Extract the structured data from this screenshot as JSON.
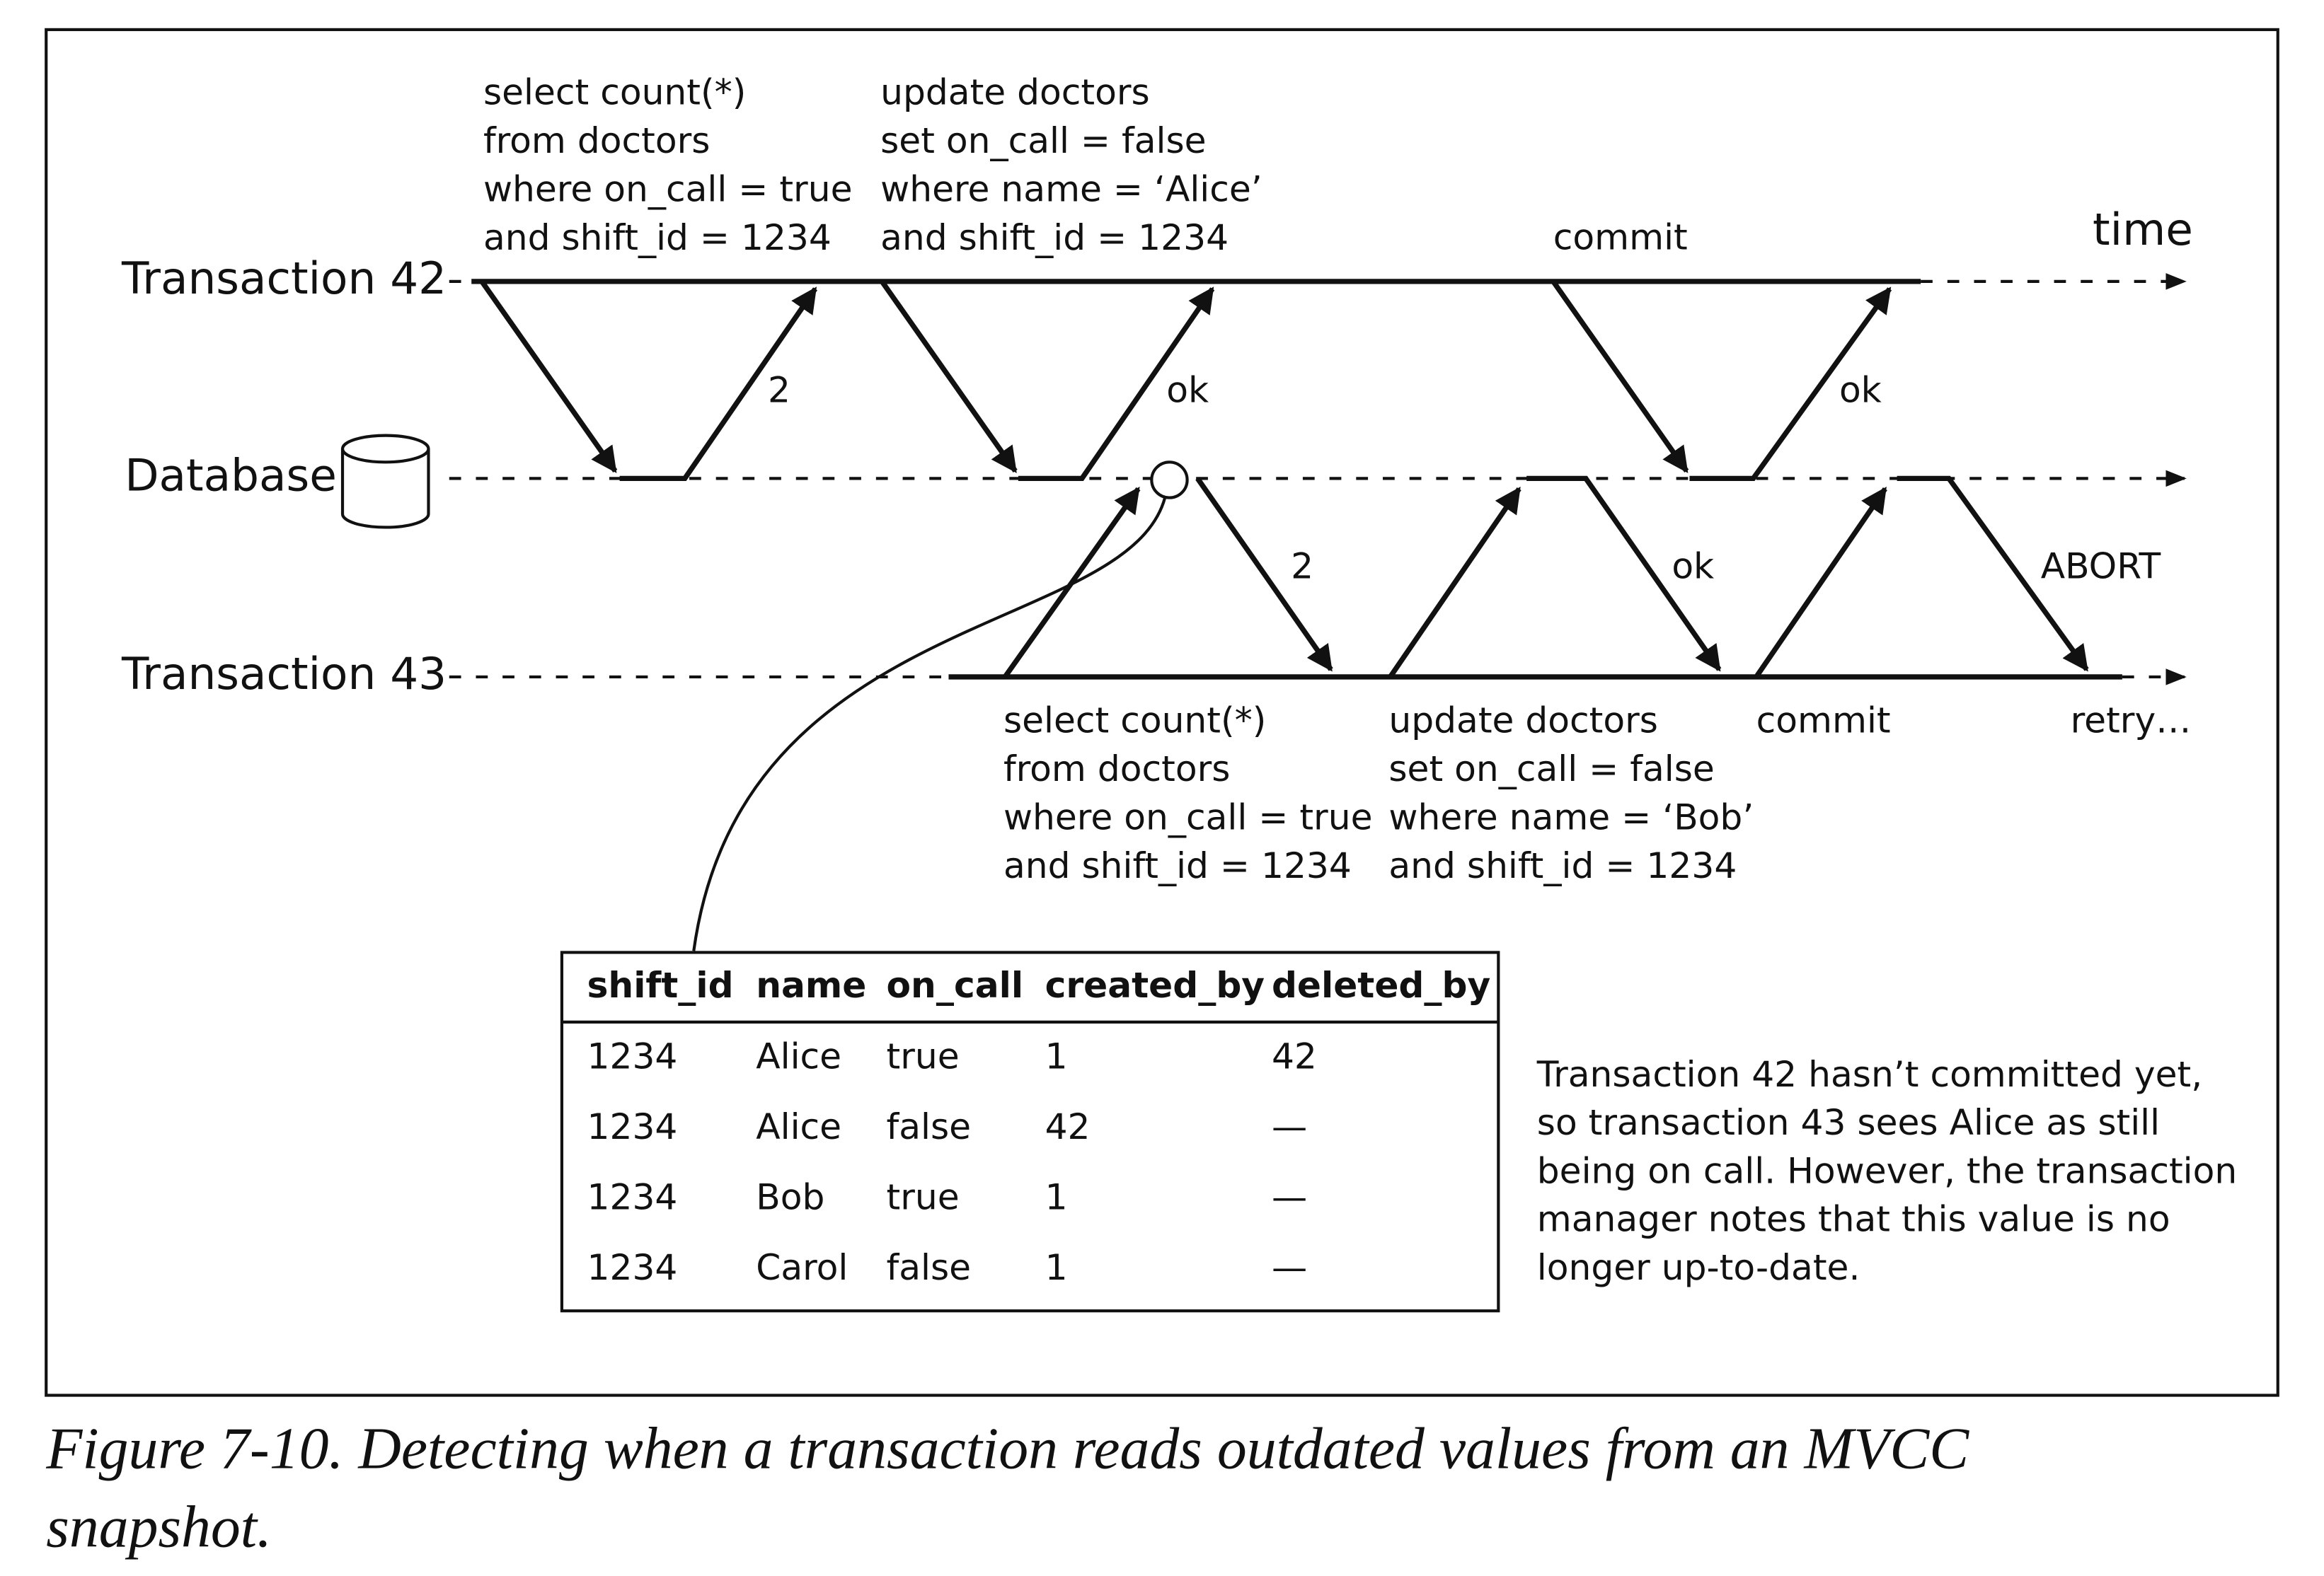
{
  "lanes": [
    "Transaction 42",
    "Database",
    "Transaction 43"
  ],
  "time_label": "time",
  "t42_select": [
    "select count(*)",
    "from doctors",
    "where on_call = true",
    "and shift_id = 1234"
  ],
  "t42_update": [
    "update doctors",
    "set on_call = false",
    "where name = ‘Alice’",
    "and shift_id = 1234"
  ],
  "t42_commit": "commit",
  "t43_select": [
    "select count(*)",
    "from doctors",
    "where on_call = true",
    "and shift_id = 1234"
  ],
  "t43_update": [
    "update doctors",
    "set on_call = false",
    "where name = ‘Bob’",
    "and shift_id = 1234"
  ],
  "t43_commit": "commit",
  "t43_retry": "retry…",
  "responses": [
    "2",
    "ok",
    "ok",
    "2",
    "ok",
    "ABORT"
  ],
  "table": {
    "header": [
      "shift_id",
      "name",
      "on_call",
      "created_by",
      "deleted_by"
    ],
    "rows": [
      [
        "1234",
        "Alice",
        "true",
        "1",
        "42"
      ],
      [
        "1234",
        "Alice",
        "false",
        "42",
        "—"
      ],
      [
        "1234",
        "Bob",
        "true",
        "1",
        "—"
      ],
      [
        "1234",
        "Carol",
        "false",
        "1",
        "—"
      ]
    ]
  },
  "note": [
    "Transaction 42 hasn’t committed yet,",
    "so transaction 43 sees Alice as still",
    "being on call. However, the transaction",
    "manager notes that this value is no",
    "longer up-to-date."
  ],
  "caption": [
    "Figure 7-10. Detecting when a transaction reads outdated values from an MVCC",
    "snapshot."
  ]
}
